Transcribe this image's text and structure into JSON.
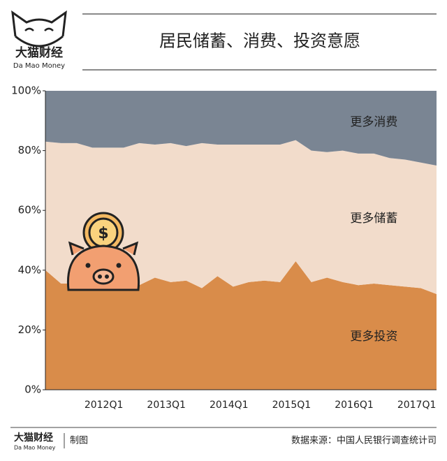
{
  "header": {
    "brand": "大猫财经",
    "brand_en": "Da Mao Money"
  },
  "footer": {
    "brand": "大猫财经",
    "brand_en": "Da Mao Money",
    "credit": "制图",
    "source": "数据来源：中国人民银行调查统计司"
  },
  "chart_data": {
    "type": "stacked-area",
    "title": "居民储蓄、消费、投资意愿",
    "categories": [
      null,
      null,
      null,
      null,
      "2012Q1",
      null,
      null,
      null,
      "2013Q1",
      null,
      null,
      null,
      "2014Q1",
      null,
      null,
      null,
      "2015Q1",
      null,
      null,
      null,
      "2016Q1",
      null,
      null,
      null,
      "2017Q1",
      null
    ],
    "series": [
      {
        "name": "更多投资",
        "color": "#d98c4a",
        "values": [
          40,
          35.5,
          35.5,
          34,
          34,
          34,
          35,
          37.5,
          36,
          36.5,
          34,
          38,
          34.5,
          36,
          36.5,
          36,
          43,
          36,
          37.5,
          36,
          35,
          35.5,
          35,
          34.5,
          34,
          32
        ]
      },
      {
        "name": "更多储蓄",
        "color": "#f2dccb",
        "values": [
          43,
          47,
          47,
          47,
          47,
          47,
          47.5,
          44.5,
          46.5,
          45,
          48.5,
          44,
          47.5,
          46,
          45.5,
          46,
          40.5,
          44,
          42,
          44,
          44,
          43.5,
          42.5,
          42.5,
          42,
          43
        ]
      },
      {
        "name": "更多消费",
        "color": "#7a8593",
        "values": [
          17,
          17.5,
          17.5,
          19,
          19,
          19,
          17.5,
          18,
          17.5,
          18.5,
          17.5,
          18,
          18,
          18,
          18,
          18,
          16.5,
          20,
          20.5,
          20,
          21,
          21,
          22.5,
          23,
          24,
          25
        ]
      }
    ],
    "ylim": [
      0,
      100
    ],
    "yticks": [
      {
        "value": 0,
        "label": "0%"
      },
      {
        "value": 20,
        "label": "20%"
      },
      {
        "value": 40,
        "label": "40%"
      },
      {
        "value": 60,
        "label": "60%"
      },
      {
        "value": 80,
        "label": "80%"
      },
      {
        "value": 100,
        "label": "100%"
      }
    ]
  }
}
